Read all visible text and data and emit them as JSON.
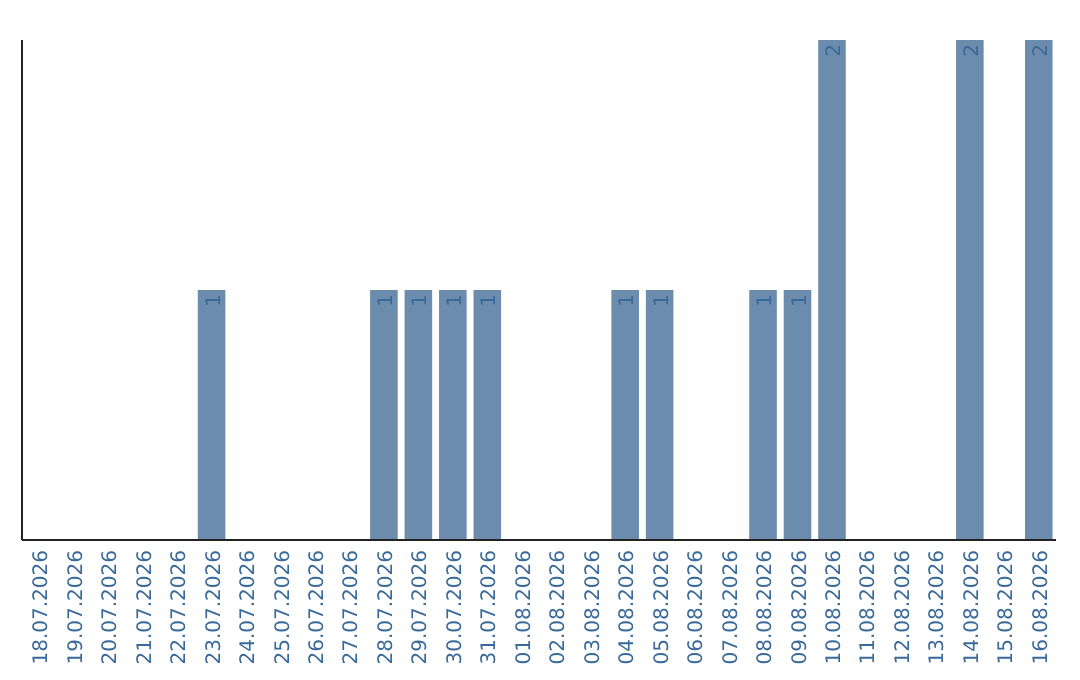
{
  "chart_data": {
    "type": "bar",
    "categories": [
      "18.07.2026",
      "19.07.2026",
      "20.07.2026",
      "21.07.2026",
      "22.07.2026",
      "23.07.2026",
      "24.07.2026",
      "25.07.2026",
      "26.07.2026",
      "27.07.2026",
      "28.07.2026",
      "29.07.2026",
      "30.07.2026",
      "31.07.2026",
      "01.08.2026",
      "02.08.2026",
      "03.08.2026",
      "04.08.2026",
      "05.08.2026",
      "06.08.2026",
      "07.08.2026",
      "08.08.2026",
      "09.08.2026",
      "10.08.2026",
      "11.08.2026",
      "12.08.2026",
      "13.08.2026",
      "14.08.2026",
      "15.08.2026",
      "16.08.2026"
    ],
    "values": [
      0,
      0,
      0,
      0,
      0,
      1,
      0,
      0,
      0,
      0,
      1,
      1,
      1,
      1,
      0,
      0,
      0,
      1,
      1,
      0,
      0,
      1,
      1,
      2,
      0,
      0,
      0,
      2,
      0,
      2
    ],
    "value_labels": [
      null,
      null,
      null,
      null,
      null,
      "1",
      null,
      null,
      null,
      null,
      "1",
      "1",
      "1",
      "1",
      null,
      null,
      null,
      "1",
      "1",
      null,
      null,
      "1",
      "1",
      "2",
      null,
      null,
      null,
      "2",
      null,
      "2"
    ],
    "color": "#6b8cac",
    "ylim": [
      0,
      2
    ],
    "tick_labels": "x",
    "grid": false
  }
}
